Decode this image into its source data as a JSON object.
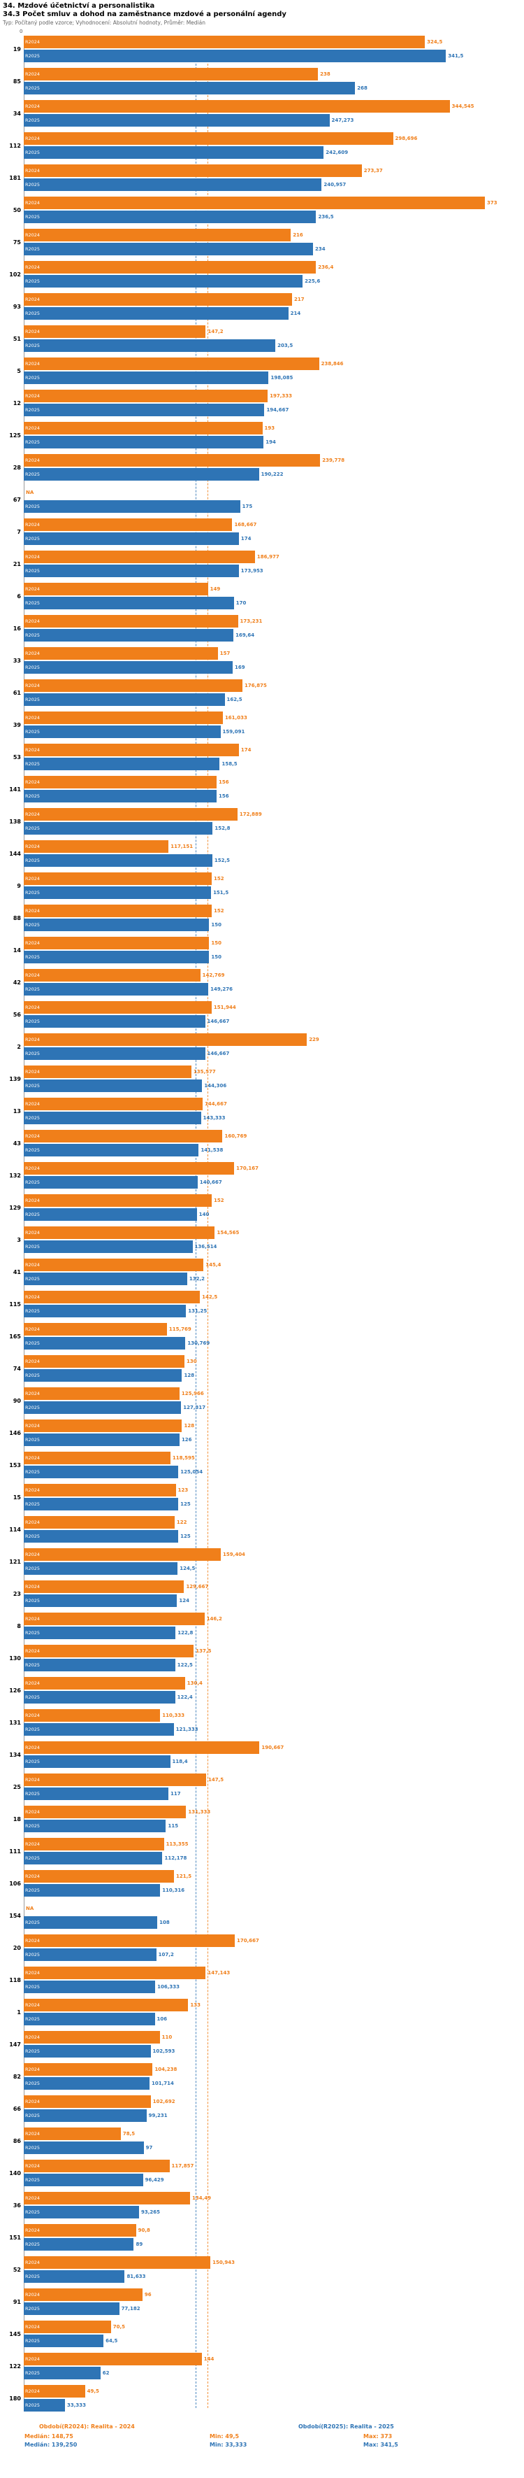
{
  "header": {
    "title": "34. Mzdové účetnictví a personalistika",
    "subtitle": "34.3 Počet smluv a dohod na zaměstnance mzdové a personální agendy",
    "meta": "Typ: Počítaný podle vzorce; Vyhodnocení: Absolutní hodnoty, Průměr: Medián"
  },
  "axis": {
    "zero_label": "0"
  },
  "colors": {
    "r2024": "#f07f1a",
    "r2025": "#2e74b5"
  },
  "chart_data": {
    "type": "bar",
    "orientation": "horizontal",
    "sort": "R2025 value descending",
    "title": "34.3 Počet smluv a dohod na zaměstnance mzdové a personální agendy",
    "xlabel": "",
    "ylabel": "",
    "xlim": [
      0,
      380
    ],
    "grid": false,
    "legend_position": "bottom",
    "median_lines": {
      "r2024": 148.75,
      "r2025": 139.25
    },
    "categories": [
      "19",
      "85",
      "34",
      "112",
      "181",
      "50",
      "75",
      "102",
      "93",
      "51",
      "5",
      "12",
      "125",
      "28",
      "67",
      "7",
      "21",
      "6",
      "16",
      "33",
      "61",
      "39",
      "53",
      "141",
      "138",
      "144",
      "9",
      "88",
      "14",
      "42",
      "56",
      "2",
      "139",
      "13",
      "43",
      "132",
      "129",
      "3",
      "41",
      "115",
      "165",
      "74",
      "90",
      "146",
      "153",
      "15",
      "114",
      "121",
      "23",
      "8",
      "130",
      "126",
      "131",
      "134",
      "25",
      "18",
      "111",
      "106",
      "154",
      "20",
      "118",
      "1",
      "147",
      "82",
      "66",
      "86",
      "140",
      "36",
      "151",
      "52",
      "91",
      "145",
      "122",
      "180"
    ],
    "series": [
      {
        "name": "R2024",
        "color": "#f07f1a",
        "values": [
          324.5,
          238,
          344.545,
          298.696,
          273.37,
          373,
          216,
          236.4,
          217,
          147.2,
          238.846,
          197.333,
          193,
          239.778,
          null,
          168.667,
          186.977,
          149,
          173.231,
          157,
          176.875,
          161.033,
          174,
          156,
          172.889,
          117.151,
          152,
          152,
          150,
          142.769,
          151.944,
          229,
          135.577,
          144.667,
          160.769,
          170.167,
          152,
          154.565,
          145.4,
          142.5,
          115.769,
          130,
          125.966,
          128,
          118.595,
          123,
          122,
          159.404,
          129.667,
          146.2,
          137.5,
          130.4,
          110.333,
          190.667,
          147.5,
          131.333,
          113.355,
          121.5,
          null,
          170.667,
          147.143,
          133,
          110,
          104.238,
          102.692,
          78.5,
          117.857,
          134.49,
          90.8,
          150.943,
          96,
          70.5,
          144,
          49.5
        ],
        "labels": [
          "324,5",
          "238",
          "344,545",
          "298,696",
          "273,37",
          "373",
          "216",
          "236,4",
          "217",
          "147,2",
          "238,846",
          "197,333",
          "193",
          "239,778",
          "NA",
          "168,667",
          "186,977",
          "149",
          "173,231",
          "157",
          "176,875",
          "161,033",
          "174",
          "156",
          "172,889",
          "117,151",
          "152",
          "152",
          "150",
          "142,769",
          "151,944",
          "229",
          "135,577",
          "144,667",
          "160,769",
          "170,167",
          "152",
          "154,565",
          "145,4",
          "142,5",
          "115,769",
          "130",
          "125,966",
          "128",
          "118,595",
          "123",
          "122",
          "159,404",
          "129,667",
          "146,2",
          "137,5",
          "130,4",
          "110,333",
          "190,667",
          "147,5",
          "131,333",
          "113,355",
          "121,5",
          "NA",
          "170,667",
          "147,143",
          "133",
          "110",
          "104,238",
          "102,692",
          "78,5",
          "117,857",
          "134,49",
          "90,8",
          "150,943",
          "96",
          "70,5",
          "144",
          "49,5"
        ]
      },
      {
        "name": "R2025",
        "color": "#2e74b5",
        "values": [
          341.5,
          268,
          247.273,
          242.609,
          240.957,
          236.5,
          234,
          225.6,
          214,
          203.5,
          198.085,
          194.667,
          194,
          190.222,
          175,
          174,
          173.953,
          170,
          169.64,
          169,
          162.5,
          159.091,
          158.5,
          156,
          152.8,
          152.5,
          151.5,
          150,
          150,
          149.276,
          146.667,
          146.667,
          144.306,
          143.333,
          141.538,
          140.667,
          140,
          136.514,
          132.2,
          131.25,
          130.769,
          128,
          127.317,
          126,
          125.054,
          125,
          125,
          124.5,
          124,
          122.8,
          122.5,
          122.4,
          121.333,
          118.4,
          117,
          115,
          112.178,
          110.316,
          108,
          107.2,
          106.333,
          106,
          102.593,
          101.714,
          99.231,
          97,
          96.429,
          93.265,
          89,
          81.633,
          77.182,
          64.5,
          62,
          33.333
        ],
        "labels": [
          "341,5",
          "268",
          "247,273",
          "242,609",
          "240,957",
          "236,5",
          "234",
          "225,6",
          "214",
          "203,5",
          "198,085",
          "194,667",
          "194",
          "190,222",
          "175",
          "174",
          "173,953",
          "170",
          "169,64",
          "169",
          "162,5",
          "159,091",
          "158,5",
          "156",
          "152,8",
          "152,5",
          "151,5",
          "150",
          "150",
          "149,276",
          "146,667",
          "146,667",
          "144,306",
          "143,333",
          "141,538",
          "140,667",
          "140",
          "136,514",
          "132,2",
          "131,25",
          "130,769",
          "128",
          "127,317",
          "126",
          "125,054",
          "125",
          "125",
          "124,5",
          "124",
          "122,8",
          "122,5",
          "122,4",
          "121,333",
          "118,4",
          "117",
          "115",
          "112,178",
          "110,316",
          "108",
          "107,2",
          "106,333",
          "106",
          "102,593",
          "101,714",
          "99,231",
          "97",
          "96,429",
          "93,265",
          "89",
          "81,633",
          "77,182",
          "64,5",
          "62",
          "33,333"
        ]
      }
    ]
  },
  "footer": {
    "legend": [
      {
        "label": "Období(R2024): Realita - 2024",
        "median": "Medián: 148,75",
        "min": "Min: 49,5",
        "max": "Max: 373"
      },
      {
        "label": "Období(R2025): Realita - 2025",
        "median": "Medián: 139,250",
        "min": "Min: 33,333",
        "max": "Max: 341,5"
      }
    ]
  }
}
